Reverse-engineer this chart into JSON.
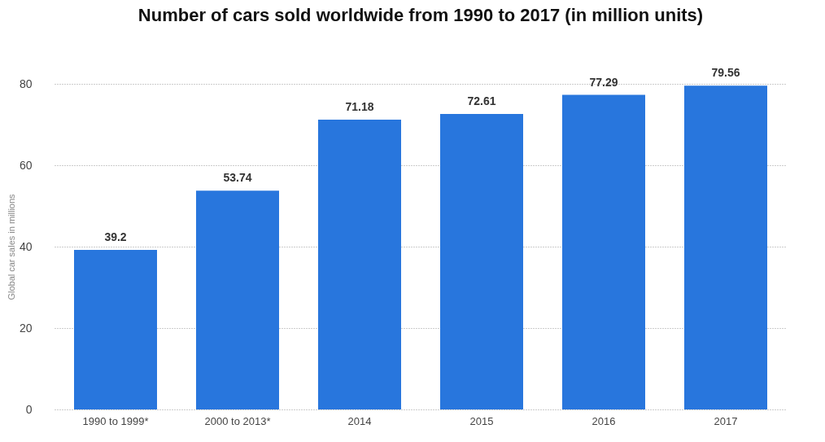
{
  "chart_data": {
    "type": "bar",
    "title": "Number of cars sold worldwide from 1990 to 2017 (in million units)",
    "ylabel": "Global car sales in millions",
    "categories": [
      "1990 to 1999*",
      "2000 to 2013*",
      "2014",
      "2015",
      "2016",
      "2017"
    ],
    "values": [
      39.2,
      53.74,
      71.18,
      72.61,
      77.29,
      79.56
    ],
    "color": "#2876dd",
    "ylim": [
      0,
      80
    ],
    "yticks": [
      0,
      20,
      40,
      60,
      80
    ],
    "grid": "y",
    "data_labels": true
  }
}
